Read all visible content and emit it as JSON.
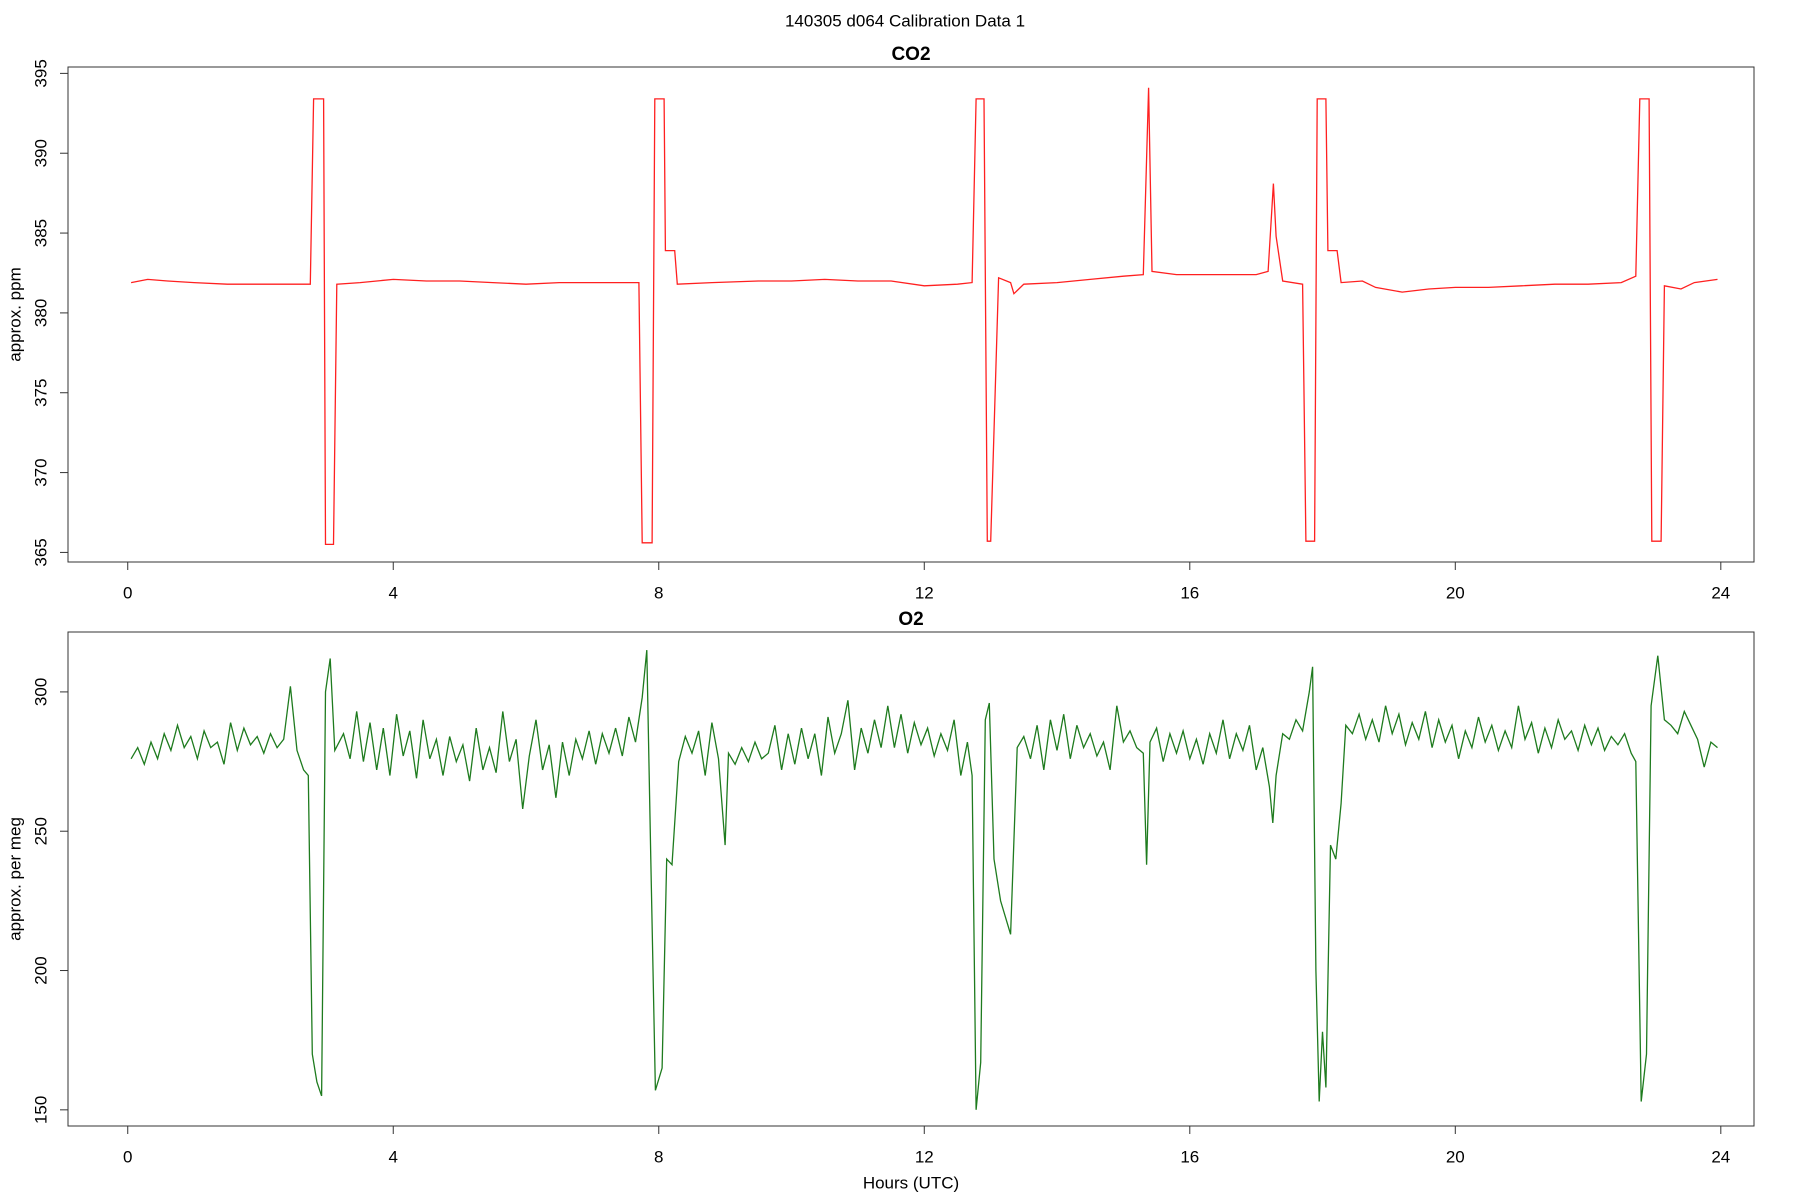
{
  "title": "140305   d064   Calibration Data 1",
  "chart_data": [
    {
      "type": "line",
      "title": "CO2",
      "ylabel": "approx. ppm",
      "xlim": [
        -0.9,
        24.5
      ],
      "xticks": [
        0,
        4,
        8,
        12,
        16,
        20,
        24
      ],
      "ylim": [
        364.4,
        395.4
      ],
      "yticks": [
        365,
        370,
        375,
        380,
        385,
        390,
        395
      ],
      "x": [
        0.05,
        0.3,
        0.6,
        1.0,
        1.5,
        2.0,
        2.5,
        2.75,
        2.8,
        2.95,
        2.98,
        3.1,
        3.15,
        3.5,
        4.0,
        4.5,
        5.0,
        5.5,
        6.0,
        6.5,
        7.0,
        7.7,
        7.75,
        7.9,
        7.94,
        8.08,
        8.1,
        8.24,
        8.28,
        8.8,
        9.5,
        10.0,
        10.5,
        11.0,
        11.5,
        12.0,
        12.5,
        12.72,
        12.78,
        12.9,
        12.95,
        13.0,
        13.12,
        13.3,
        13.35,
        13.5,
        14.0,
        14.5,
        15.0,
        15.3,
        15.38,
        15.43,
        15.8,
        16.5,
        17.0,
        17.18,
        17.26,
        17.3,
        17.4,
        17.7,
        17.75,
        17.88,
        17.92,
        18.05,
        18.08,
        18.22,
        18.28,
        18.6,
        18.8,
        19.2,
        19.6,
        20.0,
        20.5,
        21.0,
        21.5,
        22.0,
        22.5,
        22.72,
        22.78,
        22.92,
        22.96,
        23.1,
        23.15,
        23.4,
        23.6,
        23.95
      ],
      "series": [
        {
          "name": "CO2",
          "color": "#ff2020",
          "values": [
            381.9,
            382.1,
            382.0,
            381.9,
            381.8,
            381.8,
            381.8,
            381.8,
            393.4,
            393.4,
            365.5,
            365.5,
            381.8,
            381.9,
            382.1,
            382.0,
            382.0,
            381.9,
            381.8,
            381.9,
            381.9,
            381.9,
            365.6,
            365.6,
            393.4,
            393.4,
            383.9,
            383.9,
            381.8,
            381.9,
            382.0,
            382.0,
            382.1,
            382.0,
            382.0,
            381.7,
            381.8,
            381.9,
            393.4,
            393.4,
            365.7,
            365.7,
            382.2,
            381.9,
            381.2,
            381.8,
            381.9,
            382.1,
            382.3,
            382.4,
            394.1,
            382.6,
            382.4,
            382.4,
            382.4,
            382.6,
            388.1,
            384.8,
            382.0,
            381.8,
            365.7,
            365.7,
            393.4,
            393.4,
            383.9,
            383.9,
            381.9,
            382.0,
            381.6,
            381.3,
            381.5,
            381.6,
            381.6,
            381.7,
            381.8,
            381.8,
            381.9,
            382.3,
            393.4,
            393.4,
            365.7,
            365.7,
            381.7,
            381.5,
            381.9,
            382.1
          ]
        }
      ]
    },
    {
      "type": "line",
      "title": "O2",
      "ylabel": "approx. per meg",
      "xlabel": "Hours (UTC)",
      "xlim": [
        -0.9,
        24.5
      ],
      "xticks": [
        0,
        4,
        8,
        12,
        16,
        20,
        24
      ],
      "ylim": [
        144.2,
        321.5
      ],
      "yticks": [
        150,
        200,
        250,
        300
      ],
      "x": [
        0.05,
        0.15,
        0.25,
        0.35,
        0.45,
        0.55,
        0.65,
        0.75,
        0.85,
        0.95,
        1.05,
        1.15,
        1.25,
        1.35,
        1.45,
        1.55,
        1.65,
        1.75,
        1.85,
        1.95,
        2.05,
        2.15,
        2.25,
        2.35,
        2.45,
        2.55,
        2.65,
        2.72,
        2.78,
        2.85,
        2.92,
        2.98,
        3.05,
        3.12,
        3.25,
        3.35,
        3.45,
        3.55,
        3.65,
        3.75,
        3.85,
        3.95,
        4.05,
        4.15,
        4.25,
        4.35,
        4.45,
        4.55,
        4.65,
        4.75,
        4.85,
        4.95,
        5.05,
        5.15,
        5.25,
        5.35,
        5.45,
        5.55,
        5.65,
        5.75,
        5.85,
        5.95,
        6.05,
        6.15,
        6.25,
        6.35,
        6.45,
        6.55,
        6.65,
        6.75,
        6.85,
        6.95,
        7.05,
        7.15,
        7.25,
        7.35,
        7.45,
        7.55,
        7.65,
        7.75,
        7.82,
        7.88,
        7.95,
        8.05,
        8.12,
        8.2,
        8.3,
        8.4,
        8.5,
        8.6,
        8.7,
        8.8,
        8.9,
        9.0,
        9.05,
        9.15,
        9.25,
        9.35,
        9.45,
        9.55,
        9.65,
        9.75,
        9.85,
        9.95,
        10.05,
        10.15,
        10.25,
        10.35,
        10.45,
        10.55,
        10.65,
        10.75,
        10.85,
        10.95,
        11.05,
        11.15,
        11.25,
        11.35,
        11.45,
        11.55,
        11.65,
        11.75,
        11.85,
        11.95,
        12.05,
        12.15,
        12.25,
        12.35,
        12.45,
        12.55,
        12.65,
        12.72,
        12.78,
        12.85,
        12.92,
        12.98,
        13.05,
        13.15,
        13.3,
        13.4,
        13.5,
        13.6,
        13.7,
        13.8,
        13.9,
        14.0,
        14.1,
        14.2,
        14.3,
        14.4,
        14.5,
        14.6,
        14.7,
        14.8,
        14.9,
        15.0,
        15.1,
        15.2,
        15.3,
        15.35,
        15.4,
        15.5,
        15.6,
        15.7,
        15.8,
        15.9,
        16.0,
        16.1,
        16.2,
        16.3,
        16.4,
        16.5,
        16.6,
        16.7,
        16.8,
        16.9,
        17.0,
        17.1,
        17.2,
        17.25,
        17.3,
        17.4,
        17.5,
        17.6,
        17.7,
        17.8,
        17.85,
        17.9,
        17.95,
        18.0,
        18.05,
        18.12,
        18.2,
        18.28,
        18.35,
        18.45,
        18.55,
        18.65,
        18.75,
        18.85,
        18.95,
        19.05,
        19.15,
        19.25,
        19.35,
        19.45,
        19.55,
        19.65,
        19.75,
        19.85,
        19.95,
        20.05,
        20.15,
        20.25,
        20.35,
        20.45,
        20.55,
        20.65,
        20.75,
        20.85,
        20.95,
        21.05,
        21.15,
        21.25,
        21.35,
        21.45,
        21.55,
        21.65,
        21.75,
        21.85,
        21.95,
        22.05,
        22.15,
        22.25,
        22.35,
        22.45,
        22.55,
        22.65,
        22.72,
        22.8,
        22.88,
        22.95,
        23.05,
        23.15,
        23.25,
        23.35,
        23.45,
        23.55,
        23.65,
        23.75,
        23.85,
        23.95
      ],
      "series": [
        {
          "name": "O2",
          "color": "#1e7b1e",
          "values": [
            276,
            280,
            274,
            282,
            276,
            285,
            279,
            288,
            280,
            284,
            276,
            286,
            280,
            282,
            274,
            289,
            279,
            287,
            281,
            284,
            278,
            285,
            280,
            283,
            302,
            279,
            272,
            270,
            170,
            160,
            155,
            300,
            312,
            279,
            285,
            276,
            293,
            275,
            289,
            272,
            287,
            270,
            292,
            277,
            286,
            269,
            290,
            276,
            283,
            270,
            284,
            275,
            281,
            268,
            287,
            272,
            280,
            271,
            293,
            275,
            283,
            258,
            277,
            290,
            272,
            281,
            262,
            282,
            270,
            283,
            276,
            286,
            274,
            285,
            278,
            287,
            277,
            291,
            282,
            298,
            315,
            240,
            157,
            165,
            240,
            238,
            275,
            284,
            278,
            286,
            270,
            289,
            276,
            245,
            278,
            274,
            280,
            275,
            282,
            276,
            278,
            288,
            272,
            285,
            274,
            287,
            276,
            285,
            270,
            291,
            278,
            285,
            297,
            272,
            287,
            278,
            290,
            280,
            295,
            280,
            292,
            278,
            289,
            281,
            287,
            277,
            285,
            279,
            290,
            270,
            282,
            270,
            150,
            167,
            290,
            296,
            240,
            225,
            213,
            280,
            284,
            276,
            288,
            272,
            290,
            279,
            292,
            276,
            288,
            280,
            285,
            277,
            282,
            272,
            295,
            282,
            286,
            280,
            278,
            238,
            282,
            287,
            275,
            285,
            278,
            286,
            276,
            283,
            274,
            285,
            278,
            290,
            276,
            285,
            279,
            288,
            272,
            280,
            266,
            253,
            270,
            285,
            283,
            290,
            286,
            300,
            309,
            200,
            153,
            178,
            158,
            245,
            240,
            260,
            288,
            285,
            292,
            283,
            290,
            282,
            295,
            285,
            292,
            281,
            289,
            283,
            293,
            280,
            290,
            282,
            288,
            276,
            286,
            280,
            291,
            282,
            288,
            279,
            286,
            280,
            295,
            283,
            289,
            278,
            287,
            280,
            290,
            283,
            286,
            279,
            288,
            281,
            287,
            279,
            284,
            281,
            285,
            278,
            275,
            153,
            170,
            295,
            313,
            290,
            288,
            285,
            293,
            288,
            283,
            273,
            282,
            280
          ]
        }
      ]
    }
  ]
}
